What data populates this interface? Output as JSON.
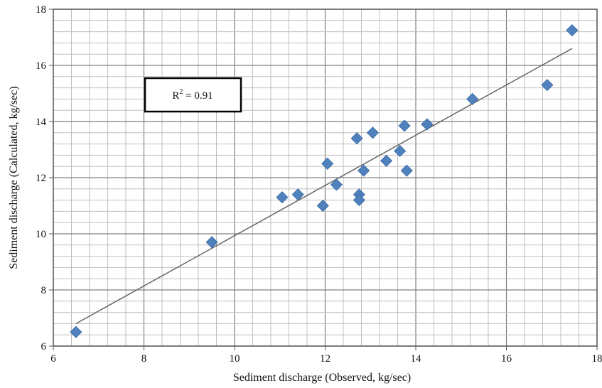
{
  "chart_data": {
    "type": "scatter",
    "xlabel": "Sediment discharge (Observed, kg/sec)",
    "ylabel": "Sediment discharge (Calculated, kg/sec)",
    "xlim": [
      6,
      18
    ],
    "ylim": [
      6,
      18
    ],
    "xticks": [
      "6",
      "8",
      "10",
      "12",
      "14",
      "16",
      "18"
    ],
    "yticks": [
      "6",
      "8",
      "10",
      "12",
      "14",
      "16",
      "18"
    ],
    "grid": true,
    "marker": "diamond",
    "marker_color": "#4f81bd",
    "trendline_color": "#666666",
    "annotation": {
      "base": "R",
      "exponent": "2",
      "rest": " = 0.91"
    },
    "points": [
      {
        "x": 6.5,
        "y": 6.5
      },
      {
        "x": 9.5,
        "y": 9.7
      },
      {
        "x": 11.05,
        "y": 11.3
      },
      {
        "x": 11.4,
        "y": 11.4
      },
      {
        "x": 11.95,
        "y": 11.0
      },
      {
        "x": 12.05,
        "y": 12.5
      },
      {
        "x": 12.25,
        "y": 11.75
      },
      {
        "x": 12.7,
        "y": 13.4
      },
      {
        "x": 12.75,
        "y": 11.4
      },
      {
        "x": 12.75,
        "y": 11.2
      },
      {
        "x": 12.85,
        "y": 12.25
      },
      {
        "x": 13.05,
        "y": 13.6
      },
      {
        "x": 13.35,
        "y": 12.6
      },
      {
        "x": 13.65,
        "y": 12.95
      },
      {
        "x": 13.75,
        "y": 13.85
      },
      {
        "x": 13.8,
        "y": 12.25
      },
      {
        "x": 14.25,
        "y": 13.9
      },
      {
        "x": 15.25,
        "y": 14.8
      },
      {
        "x": 16.9,
        "y": 15.3
      },
      {
        "x": 17.45,
        "y": 17.25
      }
    ],
    "trendline": [
      {
        "x": 6.5,
        "y": 6.8
      },
      {
        "x": 17.45,
        "y": 16.6
      }
    ]
  }
}
